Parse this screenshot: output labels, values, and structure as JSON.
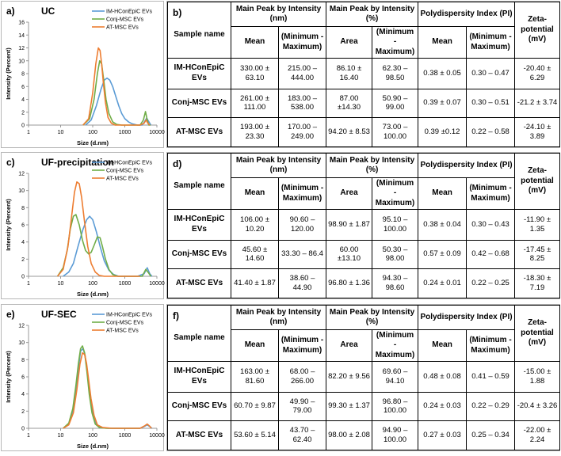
{
  "colors": {
    "blue": "#5b9bd5",
    "green": "#70ad47",
    "orange": "#ed7d31",
    "axis": "#999999"
  },
  "table_headers": {
    "sample_name": "Sample name",
    "peak_nm": "Main Peak by Intensity (nm)",
    "peak_pct": "Main Peak by Intensity (%)",
    "pdi": "Polydispersity Index (PI)",
    "zeta": "Zeta-potential (mV)",
    "mean": "Mean",
    "minmax": "(Minimum - Maximum)",
    "area": "Area"
  },
  "chart_data": [
    {
      "type": "line",
      "panel_label": "a)",
      "title": "UC",
      "xlabel": "Size (d.nm)",
      "ylabel": "Intensity (Percent)",
      "xscale": "log",
      "xlim": [
        1,
        10000
      ],
      "ylim": [
        0,
        16
      ],
      "xticks": [
        "1",
        "10",
        "100",
        "1000",
        "10000"
      ],
      "yticks": [
        "0",
        "2",
        "4",
        "6",
        "8",
        "10",
        "12",
        "14",
        "16"
      ],
      "legend": "top-right",
      "series": [
        {
          "name": "IM-HConEpiC EVs",
          "color": "#5b9bd5",
          "x": [
            60,
            90,
            130,
            180,
            230,
            280,
            340,
            420,
            520,
            650,
            800,
            1000,
            1300,
            1700,
            2500,
            3500,
            4200,
            4800,
            5500,
            6500
          ],
          "y": [
            0,
            0.8,
            3,
            5.5,
            7,
            7.3,
            7,
            6,
            4.5,
            3,
            1.8,
            1,
            0.5,
            0.2,
            0,
            0,
            0.6,
            1.1,
            0.6,
            0
          ]
        },
        {
          "name": "Conj-MSC EVs",
          "color": "#70ad47",
          "x": [
            50,
            80,
            110,
            140,
            165,
            190,
            220,
            260,
            320,
            420,
            560,
            800,
            1200,
            3000,
            3800,
            4400,
            5000,
            5600,
            6300
          ],
          "y": [
            0,
            1,
            4,
            8,
            10,
            9.5,
            7,
            4,
            1.8,
            0.5,
            0.1,
            0,
            0,
            0,
            0.8,
            2.1,
            0.8,
            0,
            0
          ]
        },
        {
          "name": "AT-MSC EVs",
          "color": "#ed7d31",
          "x": [
            50,
            75,
            100,
            125,
            150,
            170,
            190,
            215,
            250,
            300,
            380,
            500,
            700,
            1000,
            3000,
            4000,
            4600,
            5200,
            6000
          ],
          "y": [
            0,
            1,
            5,
            9.5,
            12,
            11.6,
            9.5,
            6.5,
            3.5,
            1.2,
            0.3,
            0,
            0,
            0,
            0,
            0.3,
            0.8,
            0.3,
            0
          ]
        }
      ]
    },
    {
      "type": "line",
      "panel_label": "c)",
      "title": "UF-precipitation",
      "xlabel": "Size (d.nm)",
      "ylabel": "Intensity (Percent)",
      "xscale": "log",
      "xlim": [
        1,
        10000
      ],
      "ylim": [
        0,
        12
      ],
      "xticks": [
        "1",
        "10",
        "100",
        "1000",
        "10000"
      ],
      "yticks": [
        "0",
        "2",
        "4",
        "6",
        "8",
        "10",
        "12"
      ],
      "legend": "top-right",
      "series": [
        {
          "name": "IM-HConEpiC EVs",
          "color": "#5b9bd5",
          "x": [
            12,
            18,
            25,
            35,
            50,
            65,
            80,
            100,
            130,
            170,
            230,
            320,
            450,
            650,
            1000,
            2500,
            4000,
            5000,
            6000,
            7000
          ],
          "y": [
            0,
            0.5,
            1.5,
            3.5,
            5.5,
            6.6,
            7,
            6.6,
            5.2,
            3.5,
            1.8,
            0.7,
            0.2,
            0,
            0,
            0,
            0.3,
            1,
            0.3,
            0
          ]
        },
        {
          "name": "Conj-MSC EVs",
          "color": "#70ad47",
          "x": [
            8,
            12,
            16,
            20,
            25,
            30,
            38,
            48,
            60,
            75,
            90,
            110,
            140,
            170,
            200,
            250,
            320,
            420,
            600,
            900,
            3500,
            4500,
            5500,
            6500
          ],
          "y": [
            0,
            1,
            3,
            5.5,
            7,
            7.2,
            6,
            4.2,
            3,
            2.6,
            2.8,
            3.6,
            4.6,
            4.5,
            3.5,
            2,
            0.8,
            0.2,
            0,
            0,
            0,
            0.8,
            0.4,
            0
          ]
        },
        {
          "name": "AT-MSC EVs",
          "color": "#ed7d31",
          "x": [
            8,
            12,
            17,
            22,
            27,
            32,
            38,
            45,
            55,
            70,
            90,
            120,
            160,
            230,
            350,
            3000
          ],
          "y": [
            0,
            0.8,
            3.5,
            7,
            9.8,
            11,
            10.8,
            9.2,
            6.5,
            3.5,
            1.5,
            0.5,
            0.1,
            0,
            0,
            0
          ]
        }
      ]
    },
    {
      "type": "line",
      "panel_label": "e)",
      "title": "UF-SEC",
      "xlabel": "Size (d.nm)",
      "ylabel": "Intensity (Percent)",
      "xscale": "log",
      "xlim": [
        1,
        10000
      ],
      "ylim": [
        0,
        12
      ],
      "xticks": [
        "1",
        "10",
        "100",
        "1000",
        "10000"
      ],
      "yticks": [
        "0",
        "2",
        "4",
        "6",
        "8",
        "10",
        "12"
      ],
      "legend": "top-right",
      "series": [
        {
          "name": "IM-HConEpiC EVs",
          "color": "#5b9bd5",
          "x": [
            12,
            18,
            24,
            30,
            36,
            42,
            50,
            58,
            68,
            80,
            100,
            130,
            180,
            300,
            3000,
            4000,
            5000,
            6000,
            7000
          ],
          "y": [
            0,
            0.5,
            2,
            4.5,
            7,
            9,
            9.3,
            8.5,
            6.5,
            4,
            1.8,
            0.5,
            0.1,
            0,
            0,
            0.2,
            0.4,
            0.2,
            0
          ]
        },
        {
          "name": "Conj-MSC EVs",
          "color": "#70ad47",
          "x": [
            12,
            18,
            24,
            30,
            36,
            42,
            48,
            56,
            66,
            78,
            95,
            120,
            160,
            260,
            3000
          ],
          "y": [
            0,
            0.6,
            2.3,
            5,
            7.6,
            9.3,
            9.6,
            8.8,
            6.6,
            4,
            1.8,
            0.5,
            0.1,
            0,
            0
          ]
        },
        {
          "name": "AT-MSC EVs",
          "color": "#ed7d31",
          "x": [
            12,
            18,
            25,
            32,
            40,
            48,
            56,
            64,
            74,
            88,
            110,
            140,
            200,
            400,
            3000,
            4200,
            5000,
            5800,
            6800
          ],
          "y": [
            0,
            0.4,
            1.8,
            4.5,
            7.5,
            8.8,
            8.6,
            7.6,
            5.8,
            3.5,
            1.5,
            0.4,
            0.1,
            0,
            0,
            0.3,
            0.5,
            0.3,
            0
          ]
        }
      ]
    },
    {
      "type": "table",
      "panel_label": "b)",
      "rows": [
        {
          "name": "IM-HConEpiC EVs",
          "mean": "330.00 ± 63.10",
          "minmax": "215.00 – 444.00",
          "area": "86.10 ± 16.40",
          "area_minmax": "62.30 – 98.50",
          "pi_mean": "0.38 ± 0.05",
          "pi_minmax": "0.30 – 0.47",
          "zeta": "-20.40 ± 6.29"
        },
        {
          "name": "Conj-MSC EVs",
          "mean": "261.00 ± 111.00",
          "minmax": "183.00 – 538.00",
          "area": "87.00 ±14.30",
          "area_minmax": "50.90 – 99.00",
          "pi_mean": "0.39 ± 0.07",
          "pi_minmax": "0.30 – 0.51",
          "zeta": "-21.2 ± 3.74"
        },
        {
          "name": "AT-MSC EVs",
          "mean": "193.00 ± 23.30",
          "minmax": "170.00 – 249.00",
          "area": "94.20 ± 8.53",
          "area_minmax": "73.00 – 100.00",
          "pi_mean": "0.39 ±0.12",
          "pi_minmax": "0.22 – 0.58",
          "zeta": "-24.10 ± 3.89"
        }
      ]
    },
    {
      "type": "table",
      "panel_label": "d)",
      "rows": [
        {
          "name": "IM-HConEpiC EVs",
          "mean": "106.00 ± 10.20",
          "minmax": "90.60 – 120.00",
          "area": "98.90 ± 1.87",
          "area_minmax": "95.10 – 100.00",
          "pi_mean": "0.38 ± 0.04",
          "pi_minmax": "0.30 – 0.43",
          "zeta": "-11.90 ± 1.35"
        },
        {
          "name": "Conj-MSC EVs",
          "mean": "45.60 ± 14.60",
          "minmax": "33.30 – 86.4",
          "area": "60.00 ±13.10",
          "area_minmax": "50.30 – 98.00",
          "pi_mean": "0.57 ± 0.09",
          "pi_minmax": "0.42 – 0.68",
          "zeta": "-17.45 ± 8.25"
        },
        {
          "name": "AT-MSC EVs",
          "mean": "41.40 ± 1.87",
          "minmax": "38.60 – 44.90",
          "area": "96.80 ± 1.36",
          "area_minmax": "94.30 – 98.60",
          "pi_mean": "0.24 ± 0.01",
          "pi_minmax": "0.22 – 0.25",
          "zeta": "-18.30 ± 7.19"
        }
      ]
    },
    {
      "type": "table",
      "panel_label": "f)",
      "rows": [
        {
          "name": "IM-HConEpiC EVs",
          "mean": "163.00 ± 81.60",
          "minmax": "68.00 – 266.00",
          "area": "82.20 ± 9.56",
          "area_minmax": "69.60 – 94.10",
          "pi_mean": "0.48 ± 0.08",
          "pi_minmax": "0.41 – 0.59",
          "zeta": "-15.00 ± 1.88"
        },
        {
          "name": "Conj-MSC EVs",
          "mean": "60.70 ± 9.87",
          "minmax": "49.90 – 79.00",
          "area": "99.30 ± 1.37",
          "area_minmax": "96.80 – 100.00",
          "pi_mean": "0.24 ± 0.03",
          "pi_minmax": "0.22 – 0.29",
          "zeta": "-20.4 ± 3.26"
        },
        {
          "name": "AT-MSC EVs",
          "mean": "53.60 ± 5.14",
          "minmax": "43.70 – 62.40",
          "area": "98.00 ± 2.08",
          "area_minmax": "94.90 – 100.00",
          "pi_mean": "0.27 ± 0.03",
          "pi_minmax": "0.25 – 0.34",
          "zeta": "-22.00 ± 2.24"
        }
      ]
    }
  ]
}
